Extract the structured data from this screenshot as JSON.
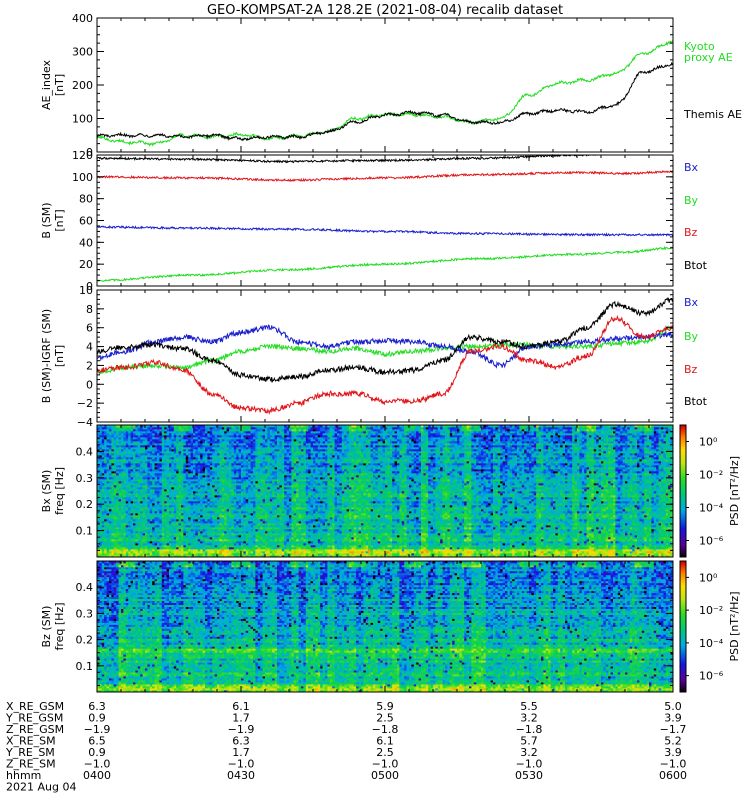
{
  "title": "GEO-KOMPSAT-2A 128.2E (2021-08-04) recalib dataset",
  "colors": {
    "black": "#000000",
    "red": "#e0161b",
    "green": "#22dd22",
    "blue": "#1a1fcc"
  },
  "chart_data": [
    {
      "type": "line",
      "ylabel_lines": [
        "AE_index",
        "[nT]"
      ],
      "ylim": [
        0,
        400
      ],
      "yticks": [
        0,
        100,
        200,
        300,
        400
      ],
      "xlim": [
        0,
        120
      ],
      "legend": [
        {
          "text": "Kyoto",
          "color": "#22dd22"
        },
        {
          "text": "proxy AE",
          "color": "#22dd22"
        },
        {
          "text": "Themis AE",
          "color": "#000000"
        }
      ],
      "series": [
        {
          "color": "#22dd22",
          "x": [
            0,
            6,
            12,
            18,
            24,
            30,
            36,
            42,
            48,
            54,
            60,
            66,
            72,
            78,
            84,
            90,
            96,
            102,
            108,
            114,
            120
          ],
          "y": [
            42,
            30,
            25,
            50,
            45,
            52,
            40,
            48,
            60,
            100,
            112,
            112,
            105,
            88,
            100,
            170,
            205,
            215,
            235,
            295,
            330
          ]
        },
        {
          "color": "#000000",
          "x": [
            0,
            6,
            12,
            18,
            24,
            30,
            36,
            42,
            48,
            54,
            60,
            66,
            72,
            78,
            84,
            90,
            96,
            102,
            108,
            114,
            120
          ],
          "y": [
            48,
            50,
            50,
            45,
            50,
            40,
            45,
            45,
            60,
            90,
            110,
            118,
            110,
            90,
            88,
            115,
            125,
            120,
            140,
            240,
            262
          ]
        }
      ]
    },
    {
      "type": "line",
      "ylabel_lines": [
        "B (SM)",
        "[nT]"
      ],
      "ylim": [
        0,
        120
      ],
      "yticks": [
        0,
        20,
        40,
        60,
        80,
        100,
        120
      ],
      "xlim": [
        0,
        120
      ],
      "legend": [
        {
          "text": "Bx",
          "color": "#1a1fcc"
        },
        {
          "text": "By",
          "color": "#22dd22"
        },
        {
          "text": "Bz",
          "color": "#e0161b"
        },
        {
          "text": "Btot",
          "color": "#000000"
        }
      ],
      "series": [
        {
          "color": "#000000",
          "x": [
            0,
            20,
            40,
            60,
            80,
            100,
            110,
            120
          ],
          "y": [
            117,
            116,
            114,
            115,
            117,
            120,
            122,
            122
          ]
        },
        {
          "color": "#e0161b",
          "x": [
            0,
            20,
            40,
            60,
            80,
            100,
            110,
            120
          ],
          "y": [
            100,
            99,
            97,
            99,
            102,
            104,
            103,
            105
          ]
        },
        {
          "color": "#1a1fcc",
          "x": [
            0,
            20,
            40,
            60,
            80,
            100,
            110,
            120
          ],
          "y": [
            54,
            53,
            52,
            50,
            48,
            47,
            47,
            47
          ]
        },
        {
          "color": "#22dd22",
          "x": [
            0,
            20,
            40,
            60,
            80,
            100,
            110,
            120
          ],
          "y": [
            5,
            10,
            15,
            20,
            25,
            29,
            31,
            35
          ]
        }
      ]
    },
    {
      "type": "line",
      "ylabel_lines": [
        "B (SM)-IGRF (SM)",
        "[nT]"
      ],
      "ylim": [
        -4,
        10
      ],
      "yticks": [
        -4,
        -2,
        0,
        2,
        4,
        6,
        8,
        10
      ],
      "xlim": [
        0,
        120
      ],
      "legend": [
        {
          "text": "Bx",
          "color": "#1a1fcc"
        },
        {
          "text": "By",
          "color": "#22dd22"
        },
        {
          "text": "Bz",
          "color": "#e0161b"
        },
        {
          "text": "Btot",
          "color": "#000000"
        }
      ],
      "series": [
        {
          "color": "#22dd22",
          "x": [
            0,
            6,
            12,
            18,
            24,
            30,
            36,
            42,
            48,
            54,
            60,
            66,
            72,
            78,
            84,
            90,
            96,
            102,
            108,
            114,
            120
          ],
          "y": [
            1.3,
            1.8,
            2.0,
            1.8,
            2.5,
            3.5,
            4.0,
            3.8,
            3.5,
            3.8,
            3.2,
            3.5,
            3.8,
            4.0,
            4.2,
            4.2,
            4.0,
            4.0,
            4.3,
            4.5,
            6.0
          ]
        },
        {
          "color": "#1a1fcc",
          "x": [
            0,
            6,
            12,
            18,
            24,
            30,
            36,
            42,
            48,
            54,
            60,
            66,
            72,
            78,
            84,
            90,
            96,
            102,
            108,
            114,
            120
          ],
          "y": [
            2.8,
            3.5,
            4.5,
            5.0,
            4.5,
            5.5,
            6.0,
            4.5,
            4.0,
            4.5,
            4.6,
            4.5,
            4.0,
            3.5,
            2.0,
            4.0,
            4.2,
            4.5,
            4.8,
            5.0,
            5.3
          ]
        },
        {
          "color": "#000000",
          "x": [
            0,
            6,
            12,
            18,
            24,
            30,
            36,
            42,
            48,
            54,
            60,
            66,
            72,
            78,
            84,
            90,
            96,
            102,
            108,
            114,
            120
          ],
          "y": [
            3.5,
            4.0,
            4.2,
            3.8,
            2.5,
            1.0,
            0.5,
            0.8,
            1.5,
            1.8,
            1.3,
            1.5,
            2.5,
            5.0,
            4.5,
            4.0,
            4.5,
            6.0,
            8.5,
            7.5,
            9.0
          ]
        },
        {
          "color": "#e0161b",
          "x": [
            0,
            6,
            12,
            18,
            24,
            30,
            36,
            42,
            48,
            54,
            60,
            66,
            72,
            78,
            84,
            90,
            96,
            102,
            108,
            114,
            120
          ],
          "y": [
            1.5,
            1.8,
            2.3,
            1.5,
            -1.0,
            -2.5,
            -2.8,
            -2.0,
            -1.0,
            -1.0,
            -1.8,
            -1.8,
            -1.0,
            3.5,
            4.0,
            2.5,
            1.8,
            3.0,
            7.0,
            5.0,
            6.0
          ]
        }
      ]
    },
    {
      "type": "heatmap",
      "ylabel_lines": [
        "Bx (SM)",
        "freq [Hz]"
      ],
      "ylim": [
        0,
        0.5
      ],
      "yticks": [
        0.1,
        0.2,
        0.3,
        0.4
      ],
      "xlim": [
        0,
        120
      ],
      "colorbar": {
        "label": "PSD [nT²/Hz]",
        "ticks": [
          "10⁰",
          "10⁻²",
          "10⁻⁴",
          "10⁻⁶"
        ],
        "tick_levels": [
          0,
          -2,
          -4,
          -6
        ],
        "range": [
          -7,
          1
        ]
      },
      "seed": 17,
      "bias": 0.0
    },
    {
      "type": "heatmap",
      "ylabel_lines": [
        "Bz (SM)",
        "freq [Hz]"
      ],
      "ylim": [
        0,
        0.5
      ],
      "yticks": [
        0.1,
        0.2,
        0.3,
        0.4
      ],
      "xlim": [
        0,
        120
      ],
      "colorbar": {
        "label": "PSD [nT²/Hz]",
        "ticks": [
          "10⁰",
          "10⁻²",
          "10⁻⁴",
          "10⁻⁶"
        ],
        "tick_levels": [
          0,
          -2,
          -4,
          -6
        ],
        "range": [
          -7,
          1
        ]
      },
      "seed": 41,
      "bias": -0.4
    }
  ],
  "ephemeris": {
    "labels": [
      "X_RE_GSM",
      "Y_RE_GSM",
      "Z_RE_GSM",
      "X_RE_SM",
      "Y_RE_SM",
      "Z_RE_SM",
      "hhmm"
    ],
    "columns": [
      [
        "6.3",
        "0.9",
        "−1.9",
        "6.5",
        "0.9",
        "−1.0",
        "0400"
      ],
      [
        "6.1",
        "1.7",
        "−1.9",
        "6.3",
        "1.7",
        "−1.0",
        "0430"
      ],
      [
        "5.9",
        "2.5",
        "−1.8",
        "6.1",
        "2.5",
        "−1.0",
        "0500"
      ],
      [
        "5.5",
        "3.2",
        "−1.8",
        "5.7",
        "3.2",
        "−1.0",
        "0530"
      ],
      [
        "5.0",
        "3.9",
        "−1.7",
        "5.2",
        "3.9",
        "−1.0",
        "0600"
      ]
    ],
    "date": "2021 Aug 04"
  }
}
